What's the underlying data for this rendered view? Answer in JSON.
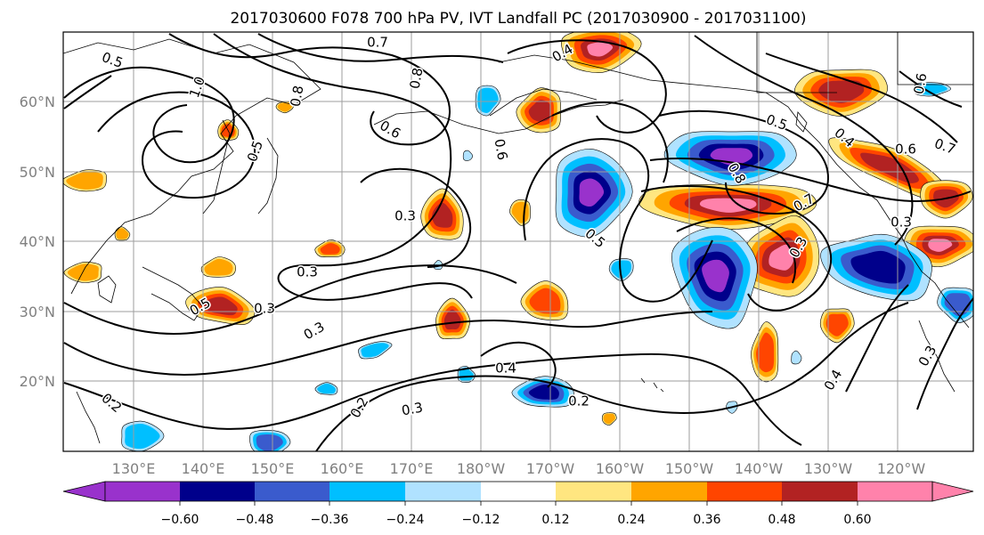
{
  "title": "2017030600 F078 700 hPa PV, IVT Landfall PC (2017030900 - 2017031100)",
  "map": {
    "lon_ticks": [
      "130°E",
      "140°E",
      "150°E",
      "160°E",
      "170°E",
      "180°W",
      "170°W",
      "160°W",
      "150°W",
      "140°W",
      "130°W",
      "120°W"
    ],
    "lat_ticks": [
      "60°N",
      "50°N",
      "40°N",
      "30°N",
      "20°N"
    ],
    "contour_labels": [
      "0.5",
      "0.7",
      "0.4",
      "0.6",
      "1.0",
      "0.8",
      "0.8",
      "0.3",
      "0.5",
      "0.6",
      "0.5",
      "0.7",
      "0.6",
      "0.3",
      "0.3",
      "0.8",
      "0.7",
      "0.4",
      "0.5",
      "0.3",
      "0.3",
      "0.5",
      "0.3",
      "0.4",
      "0.2",
      "0.2",
      "0.3",
      "0.2",
      "0.4",
      "0.3",
      "0.6"
    ],
    "colors": {
      "n060": "#9932cc",
      "n048": "#00008b",
      "n036": "#3a5bcd",
      "n024": "#00bfff",
      "n012": "#b0e2ff",
      "zero": "#ffffff",
      "p012": "#ffe680",
      "p024": "#ffa500",
      "p036": "#ff4500",
      "p048": "#b22222",
      "p060": "#ff82ab"
    }
  },
  "colorbar": {
    "tick_labels": [
      "−0.60",
      "−0.48",
      "−0.36",
      "−0.24",
      "−0.12",
      "0.12",
      "0.24",
      "0.36",
      "0.48",
      "0.60"
    ],
    "colors": [
      "#9932cc",
      "#00008b",
      "#3a5bcd",
      "#00bfff",
      "#b0e2ff",
      "#ffffff",
      "#ffe680",
      "#ffa500",
      "#ff4500",
      "#b22222",
      "#ff82ab"
    ]
  }
}
